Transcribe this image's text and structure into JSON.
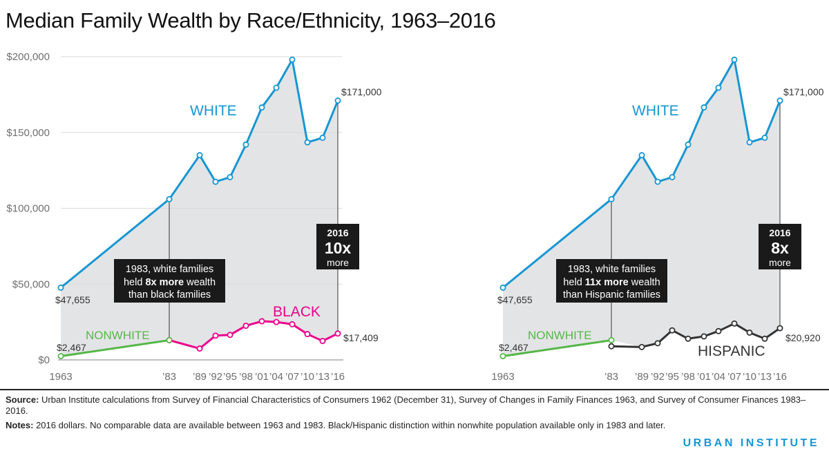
{
  "title": "Median Family Wealth by Race/Ethnicity, 1963–2016",
  "colors": {
    "white": "#1696d2",
    "black": "#ec008b",
    "hispanic": "#333333",
    "nonwhite": "#55b748",
    "fill": "#e3e4e6",
    "axis": "#6e6e6e",
    "callout_bg": "#1a1a1a"
  },
  "chart_data": [
    {
      "type": "line",
      "panel": "left",
      "ylim": [
        0,
        200000
      ],
      "yticks": [
        0,
        50000,
        100000,
        150000,
        200000
      ],
      "ytick_labels": [
        "$0",
        "$50,000",
        "$100,000",
        "$150,000",
        "$200,000"
      ],
      "xticks": [
        1963,
        1983,
        1989,
        1992,
        1995,
        1998,
        2001,
        2004,
        2007,
        2010,
        2013,
        2016
      ],
      "xtick_labels": [
        "1963",
        "’83",
        "’89",
        "’92",
        "’95",
        "’98",
        "’01",
        "’04",
        "’07",
        "’10",
        "’13",
        "’16"
      ],
      "series": [
        {
          "name": "WHITE",
          "key": "white",
          "x": [
            1963,
            1983,
            1989,
            1992,
            1995,
            1998,
            2001,
            2004,
            2007,
            2010,
            2013,
            2016
          ],
          "values": [
            47655,
            106000,
            135000,
            117500,
            120500,
            142000,
            166500,
            179500,
            198000,
            143500,
            146500,
            171000
          ]
        },
        {
          "name": "NONWHITE",
          "key": "nonwhite",
          "x": [
            1963,
            1983
          ],
          "values": [
            2467,
            13000
          ]
        },
        {
          "name": "BLACK",
          "key": "black",
          "x": [
            1983,
            1989,
            1992,
            1995,
            1998,
            2001,
            2004,
            2007,
            2010,
            2013,
            2016
          ],
          "values": [
            13000,
            7500,
            16000,
            16500,
            22500,
            25500,
            25000,
            23500,
            17000,
            12500,
            17409
          ]
        }
      ],
      "labels": {
        "white": "WHITE",
        "nonwhite": "NONWHITE",
        "other": "BLACK",
        "white_start": "$47,655",
        "nonwhite_start": "$2,467",
        "white_end": "$171,000",
        "other_end": "$17,409"
      },
      "callout_1983": [
        "1983, white families",
        "held ",
        "8x more",
        " wealth",
        "than black families"
      ],
      "callout_2016": {
        "year": "2016",
        "multiple": "10x",
        "word": "more"
      }
    },
    {
      "type": "line",
      "panel": "right",
      "ylim": [
        0,
        200000
      ],
      "yticks": [
        0,
        50000,
        100000,
        150000,
        200000
      ],
      "ytick_labels": [
        "$0",
        "$50,000",
        "$100,000",
        "$150,000",
        "$200,000"
      ],
      "xticks": [
        1963,
        1983,
        1989,
        1992,
        1995,
        1998,
        2001,
        2004,
        2007,
        2010,
        2013,
        2016
      ],
      "xtick_labels": [
        "1963",
        "’83",
        "’89",
        "’92",
        "’95",
        "’98",
        "’01",
        "’04",
        "’07",
        "’10",
        "’13",
        "’16"
      ],
      "series": [
        {
          "name": "WHITE",
          "key": "white",
          "x": [
            1963,
            1983,
            1989,
            1992,
            1995,
            1998,
            2001,
            2004,
            2007,
            2010,
            2013,
            2016
          ],
          "values": [
            47655,
            106000,
            135000,
            117500,
            120500,
            142000,
            166500,
            179500,
            198000,
            143500,
            146500,
            171000
          ]
        },
        {
          "name": "NONWHITE",
          "key": "nonwhite",
          "x": [
            1963,
            1983
          ],
          "values": [
            2467,
            13000
          ]
        },
        {
          "name": "HISPANIC",
          "key": "hispanic",
          "x": [
            1983,
            1989,
            1992,
            1995,
            1998,
            2001,
            2004,
            2007,
            2010,
            2013,
            2016
          ],
          "values": [
            9000,
            8500,
            11000,
            19500,
            14000,
            15500,
            19000,
            24000,
            18000,
            14000,
            20920
          ]
        }
      ],
      "labels": {
        "white": "WHITE",
        "nonwhite": "NONWHITE",
        "other": "HISPANIC",
        "white_start": "$47,655",
        "nonwhite_start": "$2,467",
        "white_end": "$171,000",
        "other_end": "$20,920"
      },
      "callout_1983": [
        "1983, white families",
        "held ",
        "11x more",
        " wealth",
        "than Hispanic families"
      ],
      "callout_2016": {
        "year": "2016",
        "multiple": "8x",
        "word": "more"
      }
    }
  ],
  "notes": {
    "source_label": "Source:",
    "source_text": " Urban Institute calculations from Survey of Financial Characteristics of Consumers 1962 (December 31), Survey of Changes in Family Finances 1963, and Survey of Consumer Finances 1983–2016.",
    "notes_label": "Notes:",
    "notes_text": " 2016 dollars. No comparable data are available between 1963 and 1983. Black/Hispanic distinction within nonwhite population available only in 1983 and later."
  },
  "brand": "URBAN INSTITUTE"
}
